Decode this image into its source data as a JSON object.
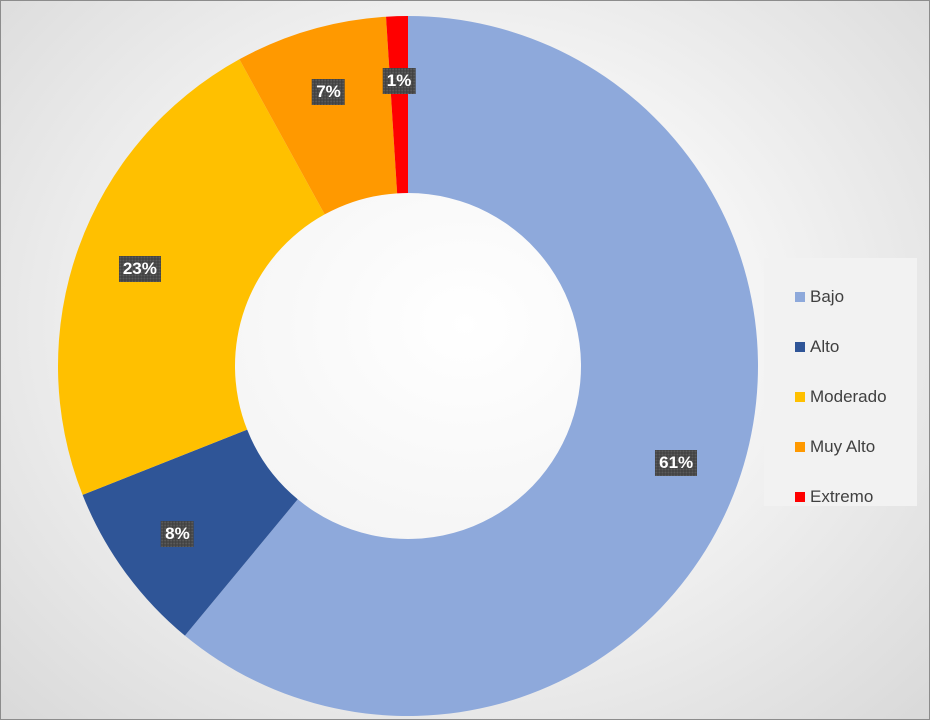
{
  "chart_data": {
    "type": "pie",
    "variant": "donut",
    "title": "",
    "categories": [
      "Bajo",
      "Alto",
      "Moderado",
      "Muy Alto",
      "Extremo"
    ],
    "values": [
      61,
      8,
      23,
      7,
      1
    ],
    "labels": [
      "61%",
      "8%",
      "23%",
      "7%",
      "1%"
    ],
    "colors": [
      "#8EA9DB",
      "#2F5597",
      "#FFC000",
      "#FF9900",
      "#FF0000"
    ],
    "legend": {
      "position": "right",
      "entries": [
        "Bajo",
        "Alto",
        "Moderado",
        "Muy Alto",
        "Extremo"
      ]
    },
    "start_angle": "12 o'clock",
    "direction": "clockwise"
  }
}
